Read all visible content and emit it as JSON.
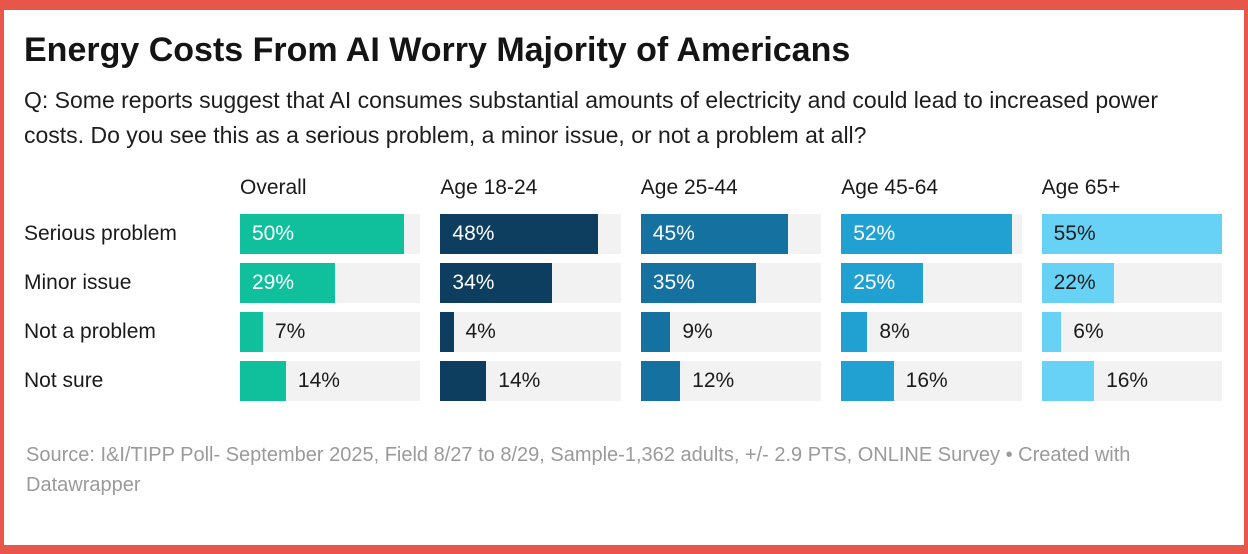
{
  "frame": {
    "accent_color": "#e8554a",
    "track_color": "#f2f2f2"
  },
  "header": {
    "title": "Energy Costs From AI Worry Majority of Americans",
    "subtitle": "Q: Some reports suggest that AI consumes substantial amounts of electricity and could lead to increased power costs. Do you see this as a serious problem, a minor issue, or not a problem at all?"
  },
  "chart_data": {
    "type": "bar",
    "title": "Energy Costs From AI Worry Majority of Americans",
    "subtitle": "Q: Some reports suggest that AI consumes substantial amounts of electricity and could lead to increased power costs. Do you see this as a serious problem, a minor issue, or not a problem at all?",
    "categories": [
      "Serious problem",
      "Minor issue",
      "Not a problem",
      "Not sure"
    ],
    "series": [
      {
        "name": "Overall",
        "color": "#10bf9c",
        "inside_text_color": "#ffffff",
        "values": [
          50,
          29,
          7,
          14
        ]
      },
      {
        "name": "Age 18-24",
        "color": "#0e3e5f",
        "inside_text_color": "#ffffff",
        "values": [
          48,
          34,
          4,
          14
        ]
      },
      {
        "name": "Age 25-44",
        "color": "#15719f",
        "inside_text_color": "#ffffff",
        "values": [
          45,
          35,
          9,
          12
        ]
      },
      {
        "name": "Age 45-64",
        "color": "#21a1d2",
        "inside_text_color": "#ffffff",
        "values": [
          52,
          25,
          8,
          16
        ]
      },
      {
        "name": "Age 65+",
        "color": "#67d2f5",
        "inside_text_color": "#1d1d1d",
        "values": [
          55,
          22,
          6,
          16
        ]
      }
    ],
    "value_suffix": "%",
    "scale_max": 55,
    "outside_text_color": "#1a1a1a",
    "legend_position": "none",
    "grid": false
  },
  "footer": {
    "text": "Source: I&I/TIPP Poll- September 2025, Field 8/27 to 8/29, Sample-1,362 adults, +/- 2.9 PTS, ONLINE Survey • Created with Datawrapper"
  }
}
